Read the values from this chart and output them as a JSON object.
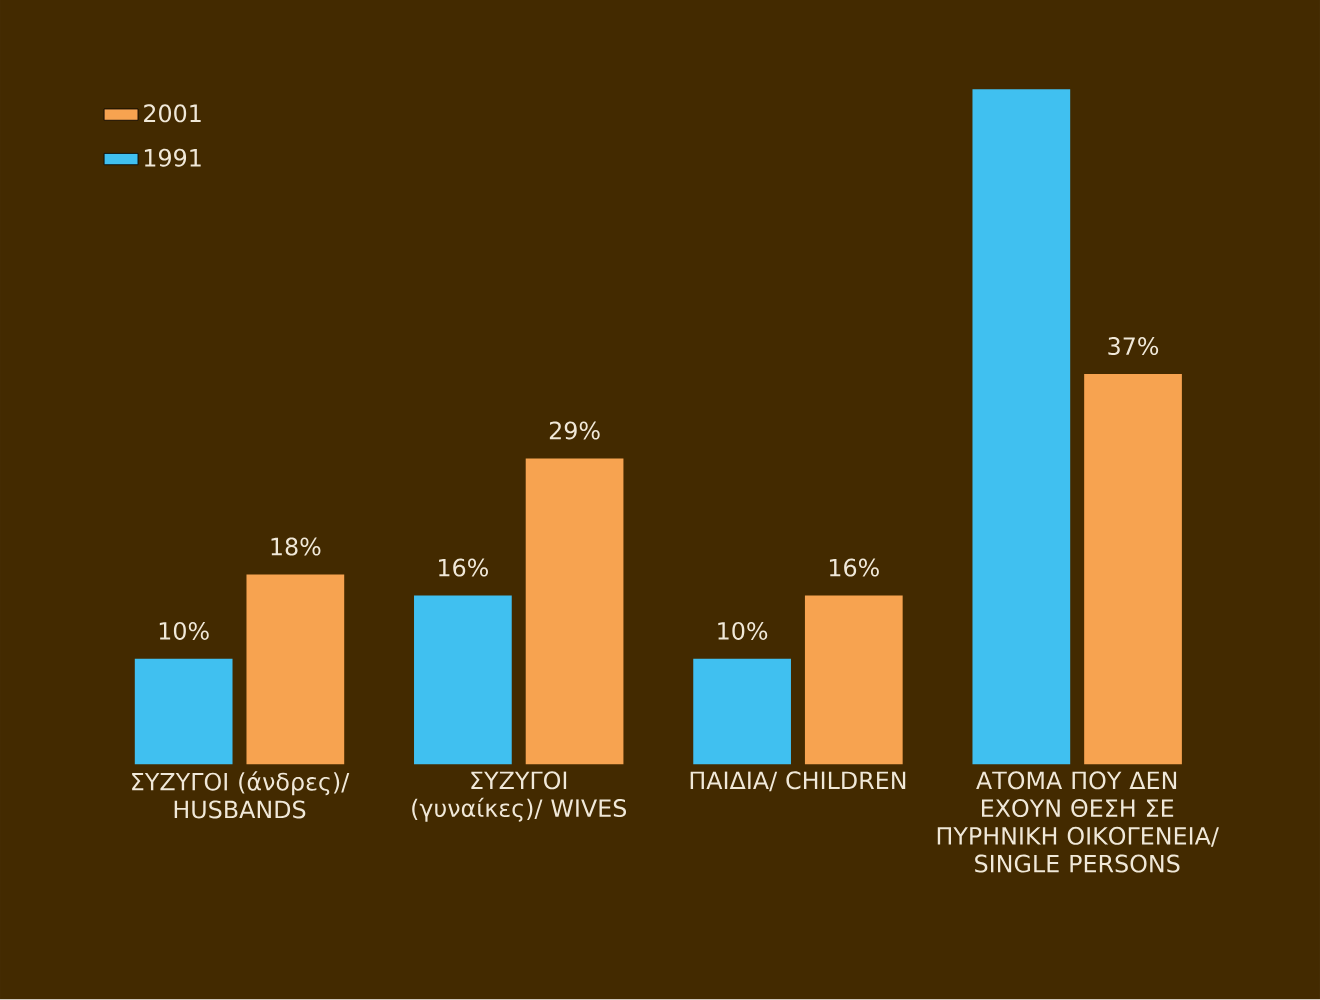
{
  "chart_data": {
    "type": "bar",
    "categories": [
      "ΣΥΖΥΓΟΙ (άνδρες)/ HUSBANDS",
      "ΣΥΖΥΓΟΙ (γυναίκες)/ WIVES",
      "ΠΑΙΔΙΑ/ CHILDREN",
      "ΑΤΟΜΑ ΠΟΥ ΔΕΝ ΕΧΟΥΝ ΘΕΣΗ ΣΕ ΠΥΡΗΝΙΚΗ ΟΙΚΟΓΕΝΕΙΑ/ SINGLE PERSONS"
    ],
    "series": [
      {
        "name": "1991",
        "color": "#40c0f0",
        "values": [
          10,
          16,
          10,
          64
        ],
        "value_labels": [
          "10%",
          "16%",
          "10%",
          null
        ]
      },
      {
        "name": "2001",
        "color": "#f7a350",
        "values": [
          18,
          29,
          16,
          37
        ],
        "value_labels": [
          "18%",
          "29%",
          "16%",
          "37%"
        ]
      }
    ],
    "legend": "top left"
  }
}
